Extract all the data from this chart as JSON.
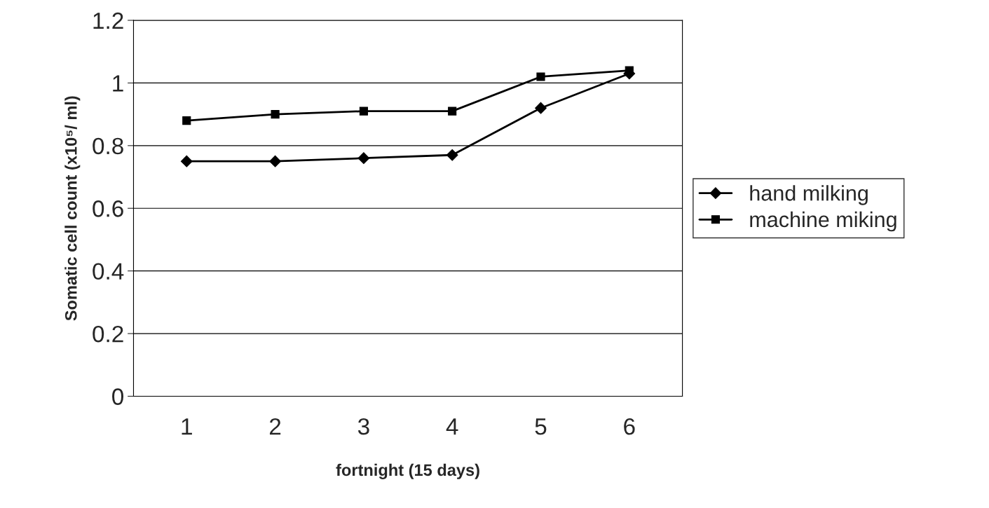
{
  "chart_data": {
    "type": "line",
    "xlabel": "fortnight (15 days)",
    "ylabel": "Somatic cell count (x10⁵/ ml)",
    "categories": [
      "1",
      "2",
      "3",
      "4",
      "5",
      "6"
    ],
    "series": [
      {
        "name": "hand milking",
        "color": "#000000",
        "marker": "diamond",
        "values": [
          0.75,
          0.75,
          0.76,
          0.77,
          0.92,
          1.03
        ]
      },
      {
        "name": "machine miking",
        "color": "#000000",
        "marker": "square",
        "values": [
          0.88,
          0.9,
          0.91,
          0.91,
          1.02,
          1.04
        ]
      }
    ],
    "ylim": [
      0,
      1.2
    ],
    "yticks": [
      0,
      0.2,
      0.4,
      0.6,
      0.8,
      1,
      1.2
    ],
    "grid": "y",
    "legend": "right"
  }
}
